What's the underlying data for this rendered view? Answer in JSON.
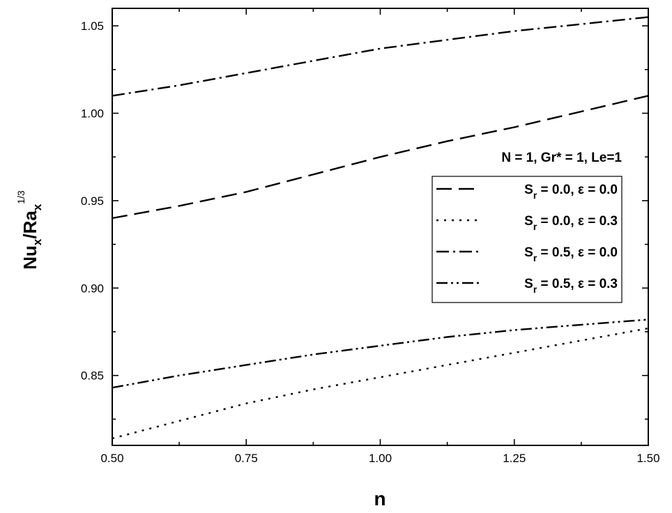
{
  "chart_data": {
    "type": "line",
    "xlabel": "n",
    "ylabel": {
      "main": "Nu",
      "sub1": "x",
      "sep": "/Ra",
      "sub2": "x",
      "sup": "1/3"
    },
    "xlim": [
      0.5,
      1.5
    ],
    "ylim": [
      0.81,
      1.06
    ],
    "xticks": [
      "0.50",
      "0.75",
      "1.00",
      "1.25",
      "1.50"
    ],
    "yticks": [
      "0.85",
      "0.90",
      "0.95",
      "1.00",
      "1.05"
    ],
    "grid": false,
    "legend_placement": "right",
    "legend_title": "N = 1, Gr* = 1, Le=1",
    "x": [
      0.5,
      0.625,
      0.75,
      0.875,
      1.0,
      1.125,
      1.25,
      1.375,
      1.5
    ],
    "series": [
      {
        "name": "S_r = 0.0, ε = 0.0",
        "label": {
          "s": "S",
          "sub": "r",
          "rest": " = 0.0, ε = 0.0"
        },
        "dash": "dash",
        "values": [
          0.94,
          0.947,
          0.955,
          0.965,
          0.975,
          0.984,
          0.992,
          1.001,
          1.01
        ]
      },
      {
        "name": "S_r = 0.0, ε = 0.3",
        "label": {
          "s": "S",
          "sub": "r",
          "rest": " = 0.0, ε = 0.3"
        },
        "dash": "dot",
        "values": [
          0.814,
          0.824,
          0.834,
          0.842,
          0.849,
          0.856,
          0.863,
          0.87,
          0.877
        ]
      },
      {
        "name": "S_r = 0.5, ε = 0.0",
        "label": {
          "s": "S",
          "sub": "r",
          "rest": " = 0.5, ε = 0.0"
        },
        "dash": "dashdot",
        "values": [
          1.01,
          1.016,
          1.023,
          1.03,
          1.037,
          1.042,
          1.047,
          1.051,
          1.055
        ]
      },
      {
        "name": "S_r = 0.5, ε = 0.3",
        "label": {
          "s": "S",
          "sub": "r",
          "rest": " = 0.5, ε = 0.3"
        },
        "dash": "dashdotdot",
        "values": [
          0.843,
          0.85,
          0.856,
          0.862,
          0.867,
          0.872,
          0.876,
          0.879,
          0.882
        ]
      }
    ]
  }
}
